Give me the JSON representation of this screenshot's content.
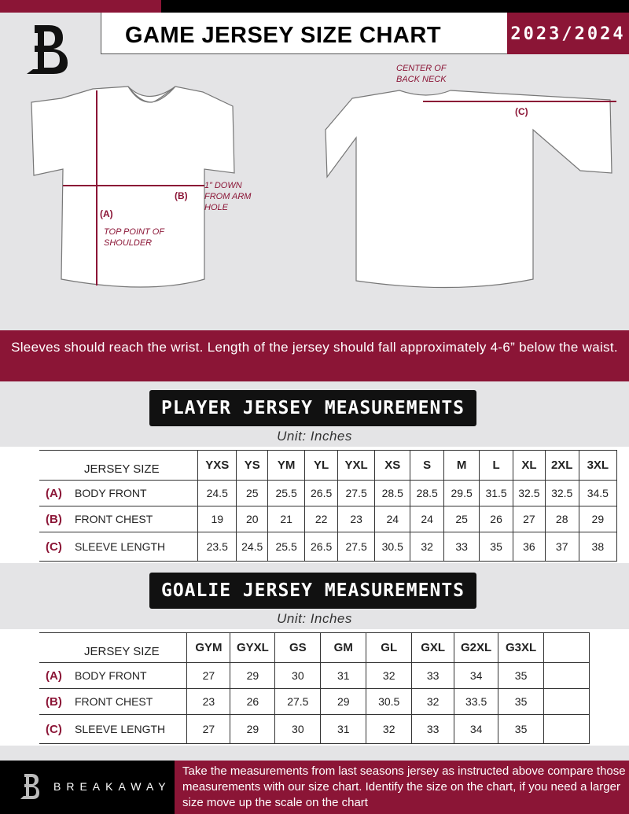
{
  "header": {
    "title": "GAME JERSEY SIZE CHART",
    "season": "2023/2024",
    "logo": "breakaway-b-logo"
  },
  "diagram": {
    "back_neck_note": "CENTER OF BACK NECK",
    "label_a": "(A)",
    "label_b": "(B)",
    "label_c": "(C)",
    "chest_note": "1” DOWN FROM ARM HOLE",
    "shoulder_note": "TOP POINT OF SHOULDER"
  },
  "instruction": "Sleeves should reach the wrist. Length of the jersey should fall approximately 4-6” below the waist.",
  "player": {
    "title": "PLAYER JERSEY MEASUREMENTS",
    "unit": "Unit: Inches",
    "size_header": "JERSEY SIZE",
    "sizes": [
      "YXS",
      "YS",
      "YM",
      "YL",
      "YXL",
      "XS",
      "S",
      "M",
      "L",
      "XL",
      "2XL",
      "3XL"
    ],
    "rows": [
      {
        "key": "(A)",
        "label": "BODY FRONT",
        "values": [
          "24.5",
          "25",
          "25.5",
          "26.5",
          "27.5",
          "28.5",
          "28.5",
          "29.5",
          "31.5",
          "32.5",
          "32.5",
          "34.5"
        ]
      },
      {
        "key": "(B)",
        "label": "FRONT CHEST",
        "values": [
          "19",
          "20",
          "21",
          "22",
          "23",
          "24",
          "24",
          "25",
          "26",
          "27",
          "28",
          "29"
        ]
      },
      {
        "key": "(C)",
        "label": "SLEEVE LENGTH",
        "values": [
          "23.5",
          "24.5",
          "25.5",
          "26.5",
          "27.5",
          "30.5",
          "32",
          "33",
          "35",
          "36",
          "37",
          "38"
        ]
      }
    ]
  },
  "goalie": {
    "title": "GOALIE JERSEY MEASUREMENTS",
    "unit": "Unit: Inches",
    "size_header": "JERSEY SIZE",
    "sizes": [
      "GYM",
      "GYXL",
      "GS",
      "GM",
      "GL",
      "GXL",
      "G2XL",
      "G3XL",
      ""
    ],
    "rows": [
      {
        "key": "(A)",
        "label": "BODY FRONT",
        "values": [
          "27",
          "29",
          "30",
          "31",
          "32",
          "33",
          "34",
          "35",
          ""
        ]
      },
      {
        "key": "(B)",
        "label": "FRONT CHEST",
        "values": [
          "23",
          "26",
          "27.5",
          "29",
          "30.5",
          "32",
          "33.5",
          "35",
          ""
        ]
      },
      {
        "key": "(C)",
        "label": "SLEEVE LENGTH",
        "values": [
          "27",
          "29",
          "30",
          "31",
          "32",
          "33",
          "34",
          "35",
          ""
        ]
      }
    ]
  },
  "footer": {
    "brand": "BREAKAWAY",
    "text": "Take the measurements from last seasons jersey as instructed above compare those measurements  with our size chart. Identify the size on the chart, if you need a larger size move up the scale on the chart"
  },
  "colors": {
    "accent": "#8b1536",
    "background": "#e4e4e6"
  }
}
